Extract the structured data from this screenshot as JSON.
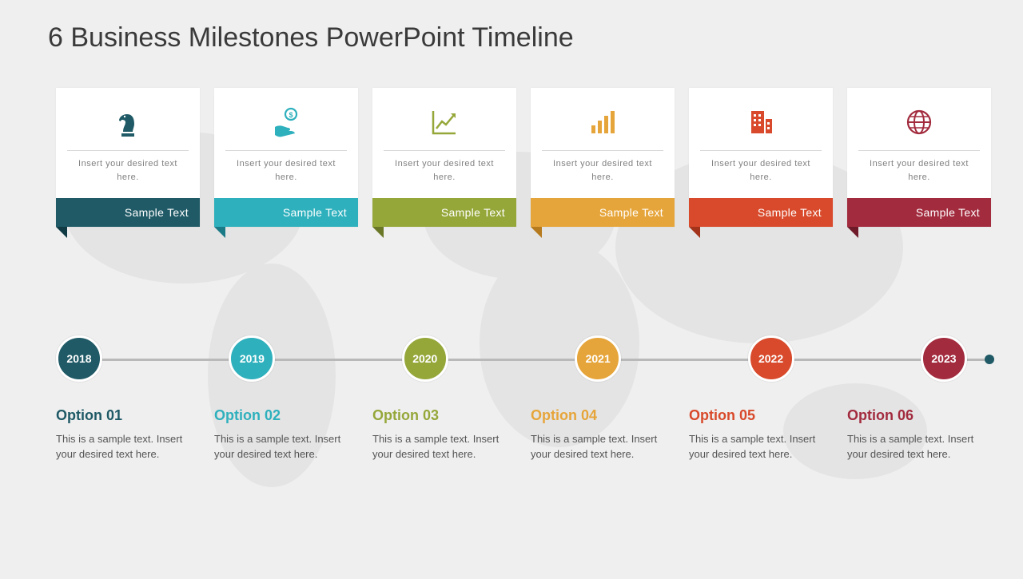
{
  "title": "6 Business Milestones PowerPoint Timeline",
  "background_color": "#efefef",
  "card_bg": "#ffffff",
  "timeline_line_color": "#b9b9b9",
  "end_dot_color": "#1f5a66",
  "milestones": [
    {
      "icon": "chess-knight",
      "color": "#1f5a66",
      "ribbon_dark": "#103b44",
      "card_text": "Insert your desired text here.",
      "ribbon_label": "Sample Text",
      "year": "2018",
      "option_title": "Option 01",
      "option_text": "This is a sample text. Insert your desired text here."
    },
    {
      "icon": "hand-dollar",
      "color": "#2eb0bd",
      "ribbon_dark": "#1a7a85",
      "card_text": "Insert your desired text here.",
      "ribbon_label": "Sample Text",
      "year": "2019",
      "option_title": "Option 02",
      "option_text": "This is a sample text. Insert your desired text here."
    },
    {
      "icon": "growth-chart",
      "color": "#96a73a",
      "ribbon_dark": "#6a7726",
      "card_text": "Insert your desired text here.",
      "ribbon_label": "Sample Text",
      "year": "2020",
      "option_title": "Option 03",
      "option_text": "This is a sample text. Insert your desired text here."
    },
    {
      "icon": "bar-chart",
      "color": "#e6a53a",
      "ribbon_dark": "#b67b1f",
      "card_text": "Insert your desired text here.",
      "ribbon_label": "Sample Text",
      "year": "2021",
      "option_title": "Option 04",
      "option_text": "This is a sample text. Insert your desired text here."
    },
    {
      "icon": "building",
      "color": "#d84a2b",
      "ribbon_dark": "#a3331a",
      "card_text": "Insert your desired text here.",
      "ribbon_label": "Sample Text",
      "year": "2022",
      "option_title": "Option 05",
      "option_text": "This is a sample text. Insert your desired text here."
    },
    {
      "icon": "globe",
      "color": "#a22b3e",
      "ribbon_dark": "#6e1a29",
      "card_text": "Insert your desired text here.",
      "ribbon_label": "Sample Text",
      "year": "2023",
      "option_title": "Option 06",
      "option_text": "This is a sample text. Insert your desired text here."
    }
  ]
}
